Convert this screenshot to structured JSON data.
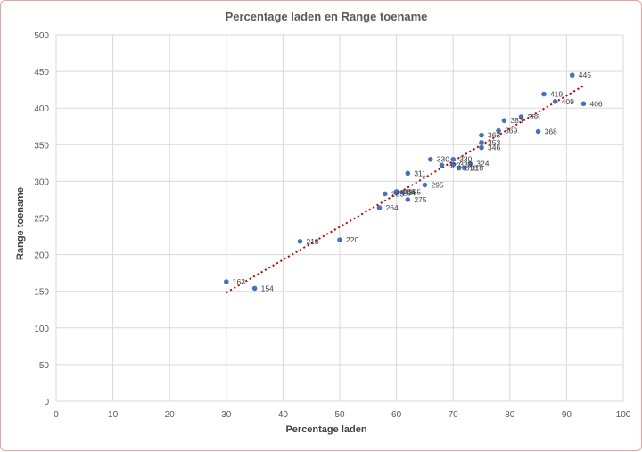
{
  "chart_data": {
    "type": "scatter",
    "title": "Percentage laden en Range toename",
    "xlabel": "Percentage laden",
    "ylabel": "Range toename",
    "xlim": [
      0,
      100
    ],
    "ylim": [
      0,
      500
    ],
    "xticks": [
      0,
      10,
      20,
      30,
      40,
      50,
      60,
      70,
      80,
      90,
      100
    ],
    "yticks": [
      0,
      50,
      100,
      150,
      200,
      250,
      300,
      350,
      400,
      450,
      500
    ],
    "grid": true,
    "legend": "none",
    "data_labels": true,
    "trendline": {
      "type": "linear",
      "style": "dotted",
      "color": "#c00000"
    },
    "marker_color": "#4472c4",
    "points": [
      {
        "x": 30,
        "y": 163
      },
      {
        "x": 35,
        "y": 154
      },
      {
        "x": 43,
        "y": 218
      },
      {
        "x": 50,
        "y": 220
      },
      {
        "x": 57,
        "y": 264
      },
      {
        "x": 58,
        "y": 283
      },
      {
        "x": 60,
        "y": 286
      },
      {
        "x": 60,
        "y": 284
      },
      {
        "x": 61,
        "y": 285
      },
      {
        "x": 62,
        "y": 275
      },
      {
        "x": 62,
        "y": 311
      },
      {
        "x": 65,
        "y": 295
      },
      {
        "x": 66,
        "y": 330
      },
      {
        "x": 68,
        "y": 322
      },
      {
        "x": 70,
        "y": 330
      },
      {
        "x": 70,
        "y": 323
      },
      {
        "x": 71,
        "y": 318
      },
      {
        "x": 72,
        "y": 318
      },
      {
        "x": 73,
        "y": 324
      },
      {
        "x": 75,
        "y": 363
      },
      {
        "x": 75,
        "y": 353
      },
      {
        "x": 75,
        "y": 346
      },
      {
        "x": 78,
        "y": 369
      },
      {
        "x": 79,
        "y": 383
      },
      {
        "x": 82,
        "y": 388
      },
      {
        "x": 85,
        "y": 368
      },
      {
        "x": 86,
        "y": 419
      },
      {
        "x": 88,
        "y": 409
      },
      {
        "x": 91,
        "y": 445
      },
      {
        "x": 93,
        "y": 406
      }
    ]
  }
}
